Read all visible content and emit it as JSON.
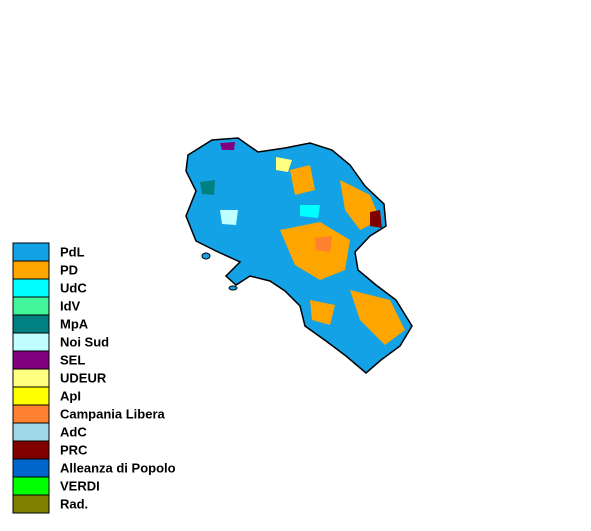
{
  "legend": {
    "items": [
      {
        "label": "PdL",
        "color": "#14a2e6"
      },
      {
        "label": "PD",
        "color": "#ffa500"
      },
      {
        "label": "UdC",
        "color": "#00ffff"
      },
      {
        "label": "IdV",
        "color": "#40f59a"
      },
      {
        "label": "MpA",
        "color": "#008080"
      },
      {
        "label": "Noi Sud",
        "color": "#c0ffff"
      },
      {
        "label": "SEL",
        "color": "#800080"
      },
      {
        "label": "UDEUR",
        "color": "#ffff80"
      },
      {
        "label": "ApI",
        "color": "#ffff00"
      },
      {
        "label": "Campania Libera",
        "color": "#ff8030"
      },
      {
        "label": "AdC",
        "color": "#a0d8e8"
      },
      {
        "label": "PRC",
        "color": "#800000"
      },
      {
        "label": "Alleanza di Popolo",
        "color": "#0066cc"
      },
      {
        "label": "VERDI",
        "color": "#00ff00"
      },
      {
        "label": "Rad.",
        "color": "#808000"
      }
    ]
  }
}
